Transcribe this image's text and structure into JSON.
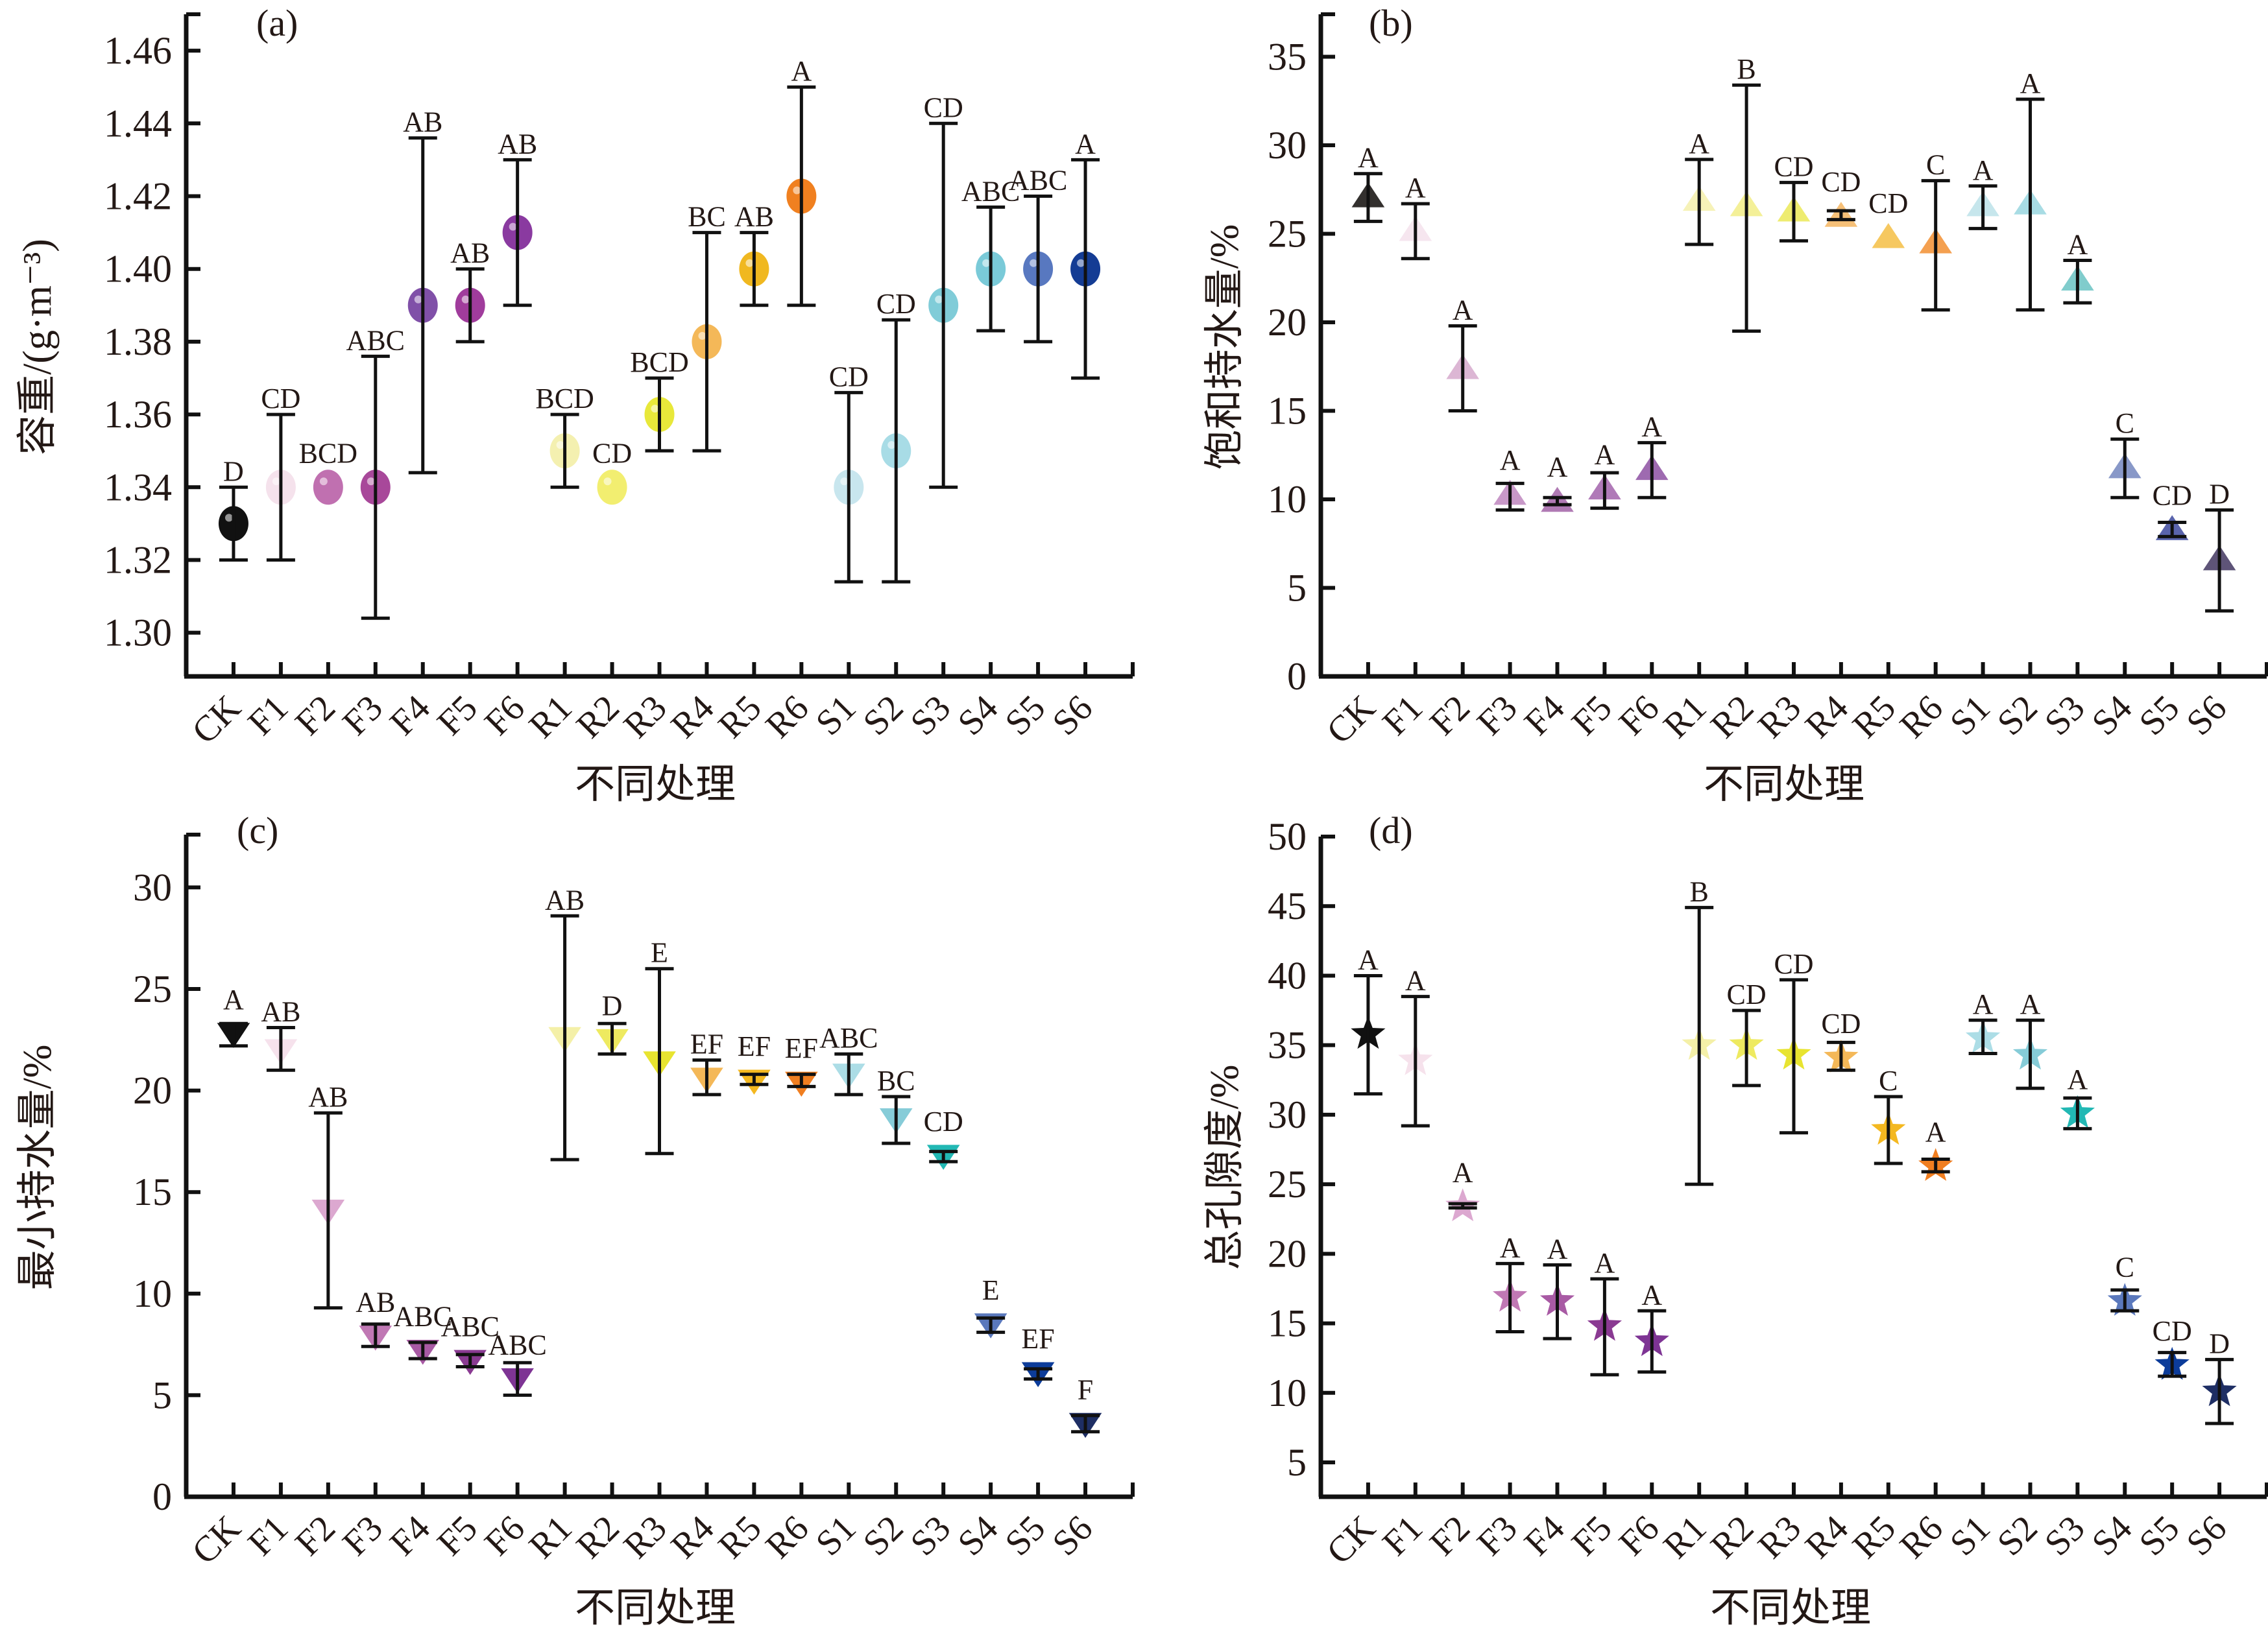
{
  "chart_data": [
    {
      "id": "a",
      "type": "scatter",
      "marker": "circle",
      "panel_label": "(a)",
      "title": "",
      "xlabel": "不同处理",
      "ylabel": "容重/(g·m⁻³)",
      "ylim": [
        1.288,
        1.47
      ],
      "yticks": [
        1.3,
        1.32,
        1.34,
        1.36,
        1.38,
        1.4,
        1.42,
        1.44,
        1.46
      ],
      "ytick_labels": [
        "1.30",
        "1.32",
        "1.34",
        "1.36",
        "1.38",
        "1.40",
        "1.42",
        "1.44",
        "1.46"
      ],
      "grid": false,
      "categories": [
        "CK",
        "F1",
        "F2",
        "F3",
        "F4",
        "F5",
        "F6",
        "R1",
        "R2",
        "R3",
        "R4",
        "R5",
        "R6",
        "S1",
        "S2",
        "S3",
        "S4",
        "S5",
        "S6"
      ],
      "values": [
        1.33,
        1.34,
        1.34,
        1.34,
        1.39,
        1.39,
        1.41,
        1.35,
        1.34,
        1.36,
        1.38,
        1.4,
        1.42,
        1.34,
        1.35,
        1.39,
        1.4,
        1.4,
        1.4
      ],
      "err_low": [
        1.32,
        1.32,
        1.34,
        1.304,
        1.344,
        1.38,
        1.39,
        1.34,
        1.34,
        1.35,
        1.35,
        1.39,
        1.39,
        1.314,
        1.314,
        1.34,
        1.383,
        1.38,
        1.37
      ],
      "err_high": [
        1.34,
        1.36,
        1.34,
        1.376,
        1.436,
        1.4,
        1.43,
        1.36,
        1.34,
        1.37,
        1.41,
        1.41,
        1.45,
        1.366,
        1.386,
        1.44,
        1.417,
        1.42,
        1.43
      ],
      "significance": [
        "D",
        "CD",
        "BCD",
        "ABC",
        "AB",
        "AB",
        "AB",
        "BCD",
        "CD",
        "BCD",
        "BC",
        "AB",
        "A",
        "CD",
        "CD",
        "CD",
        "ABC",
        "ABC",
        "A"
      ],
      "colors": [
        "#111111",
        "#f5e2ec",
        "#c070b0",
        "#a8489a",
        "#8050a8",
        "#a03c9c",
        "#8a3aa0",
        "#f4f0b0",
        "#f2ee70",
        "#e8e83a",
        "#f4b858",
        "#f0b820",
        "#f08020",
        "#c8e6ee",
        "#a8dce6",
        "#80ccd8",
        "#7acad8",
        "#5878c0",
        "#143c94"
      ]
    },
    {
      "id": "b",
      "type": "scatter",
      "marker": "triangle-up",
      "panel_label": "(b)",
      "title": "",
      "xlabel": "不同处理",
      "ylabel": "饱和持水量/%",
      "ylim": [
        0,
        37.4
      ],
      "yticks": [
        0,
        5,
        10,
        15,
        20,
        25,
        30,
        35
      ],
      "ytick_labels": [
        "0",
        "5",
        "10",
        "15",
        "20",
        "25",
        "30",
        "35"
      ],
      "grid": false,
      "categories": [
        "CK",
        "F1",
        "F2",
        "F3",
        "F4",
        "F5",
        "F6",
        "R1",
        "R2",
        "R3",
        "R4",
        "R5",
        "R6",
        "S1",
        "S2",
        "S3",
        "S4",
        "S5",
        "S6"
      ],
      "values": [
        27.1,
        25.2,
        17.4,
        10.3,
        9.9,
        10.6,
        11.7,
        26.9,
        26.6,
        26.3,
        26.0,
        24.8,
        24.5,
        26.6,
        26.7,
        22.4,
        11.8,
        8.3,
        6.6
      ],
      "err_low": [
        25.7,
        23.6,
        15.0,
        9.4,
        9.7,
        9.5,
        10.1,
        24.4,
        19.5,
        24.6,
        25.8,
        24.8,
        20.7,
        25.3,
        20.7,
        21.1,
        10.1,
        7.9,
        3.7
      ],
      "err_high": [
        28.4,
        26.7,
        19.8,
        10.9,
        10.1,
        11.5,
        13.2,
        29.2,
        33.4,
        27.9,
        26.3,
        24.8,
        28.0,
        27.7,
        32.6,
        23.5,
        13.4,
        8.7,
        9.4
      ],
      "significance": [
        "A",
        "A",
        "A",
        "A",
        "A",
        "A",
        "A",
        "A",
        "B",
        "CD",
        "CD",
        "CD",
        "C",
        "A",
        "A",
        "A",
        "C",
        "CD",
        "D"
      ],
      "colors": [
        "#33302e",
        "#f6e6ef",
        "#dcb6d4",
        "#c898c8",
        "#b07ab4",
        "#b07ab8",
        "#9e6ab0",
        "#f6f2b8",
        "#f4f098",
        "#eeec70",
        "#f6c078",
        "#f6c860",
        "#f4a050",
        "#c6e6ec",
        "#a8dce4",
        "#80cccc",
        "#8898c8",
        "#5a64ac",
        "#5e5478"
      ]
    },
    {
      "id": "c",
      "type": "scatter",
      "marker": "triangle-down",
      "panel_label": "(c)",
      "title": "",
      "xlabel": "不同处理",
      "ylabel": "最小持水量/%",
      "ylim": [
        0,
        32.6
      ],
      "yticks": [
        0,
        5,
        10,
        15,
        20,
        25,
        30
      ],
      "ytick_labels": [
        "0",
        "5",
        "10",
        "15",
        "20",
        "25",
        "30"
      ],
      "grid": false,
      "categories": [
        "CK",
        "F1",
        "F2",
        "F3",
        "F4",
        "F5",
        "F6",
        "R1",
        "R2",
        "R3",
        "R4",
        "R5",
        "R6",
        "S1",
        "S2",
        "S3",
        "S4",
        "S5",
        "S6"
      ],
      "values": [
        22.8,
        22.0,
        14.1,
        7.9,
        7.2,
        6.7,
        5.8,
        22.6,
        22.5,
        21.4,
        20.6,
        20.5,
        20.4,
        20.8,
        18.6,
        16.8,
        8.5,
        6.1,
        3.6
      ],
      "err_low": [
        22.2,
        21.0,
        9.3,
        7.4,
        6.8,
        6.4,
        5.0,
        16.6,
        21.8,
        16.9,
        19.8,
        20.3,
        20.2,
        19.8,
        17.4,
        16.5,
        8.1,
        5.8,
        3.2
      ],
      "err_high": [
        23.3,
        23.1,
        18.9,
        8.5,
        7.6,
        7.0,
        6.6,
        28.6,
        23.3,
        26.0,
        21.5,
        20.8,
        20.8,
        21.8,
        19.7,
        17.0,
        8.8,
        6.3,
        4.0
      ],
      "significance": [
        "A",
        "AB",
        "AB",
        "AB",
        "ABC",
        "ABC",
        "ABC",
        "AB",
        "D",
        "E",
        "EF",
        "EF",
        "EF",
        "ABC",
        "BC",
        "CD",
        "E",
        "EF",
        "F"
      ],
      "colors": [
        "#111111",
        "#f6e2ec",
        "#dca8d0",
        "#c078b4",
        "#a85aa4",
        "#8a3a92",
        "#7e3494",
        "#f4f0a8",
        "#eeea60",
        "#e8e430",
        "#f4b858",
        "#f4b820",
        "#f07e20",
        "#acdde6",
        "#86ccd8",
        "#22b8b4",
        "#5a78bc",
        "#0c3c9a",
        "#1e2e64"
      ]
    },
    {
      "id": "d",
      "type": "scatter",
      "marker": "star",
      "panel_label": "(d)",
      "title": "",
      "xlabel": "不同处理",
      "ylabel": "总孔隙度/%",
      "ylim": [
        2.53,
        50
      ],
      "yticks": [
        5,
        10,
        15,
        20,
        25,
        30,
        35,
        40,
        45,
        50
      ],
      "ytick_labels": [
        "5",
        "10",
        "15",
        "20",
        "25",
        "30",
        "35",
        "40",
        "45",
        "50"
      ],
      "grid": false,
      "categories": [
        "CK",
        "F1",
        "F2",
        "F3",
        "F4",
        "F5",
        "F6",
        "R1",
        "R2",
        "R3",
        "R4",
        "R5",
        "R6",
        "S1",
        "S2",
        "S3",
        "S4",
        "S5",
        "S6"
      ],
      "values": [
        35.8,
        33.9,
        23.4,
        16.9,
        16.6,
        14.8,
        13.7,
        35.0,
        35.0,
        34.3,
        34.1,
        28.9,
        26.3,
        35.5,
        34.3,
        30.1,
        16.6,
        12.0,
        10.1
      ],
      "err_low": [
        31.5,
        29.2,
        23.3,
        14.4,
        13.9,
        11.3,
        11.5,
        25.0,
        32.1,
        28.7,
        33.2,
        26.5,
        25.9,
        34.4,
        31.9,
        29.0,
        15.9,
        11.2,
        7.8
      ],
      "err_high": [
        40.0,
        38.5,
        23.6,
        19.3,
        19.2,
        18.2,
        15.9,
        44.9,
        37.5,
        39.7,
        35.2,
        31.3,
        26.8,
        36.8,
        36.8,
        31.2,
        17.4,
        12.9,
        12.4
      ],
      "significance": [
        "A",
        "A",
        "A",
        "A",
        "A",
        "A",
        "A",
        "B",
        "CD",
        "CD",
        "CD",
        "C",
        "A",
        "A",
        "A",
        "A",
        "C",
        "CD",
        "D"
      ],
      "colors": [
        "#111111",
        "#f6e2ec",
        "#dca8d0",
        "#c078b4",
        "#a85aa4",
        "#8a3a92",
        "#7e3494",
        "#f4f0a8",
        "#eeea60",
        "#e8e430",
        "#f4b858",
        "#f4b820",
        "#f07e20",
        "#acdde6",
        "#86ccd8",
        "#22b8b4",
        "#5a78bc",
        "#0c3c9a",
        "#1e2e64"
      ]
    }
  ]
}
